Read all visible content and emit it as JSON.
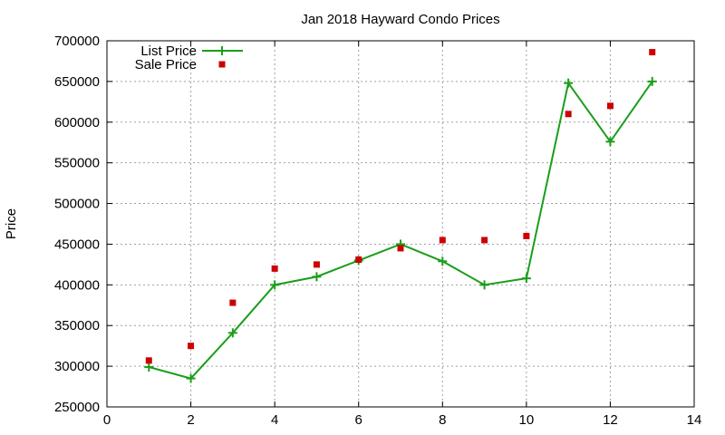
{
  "chart_data": {
    "type": "line",
    "title": "Jan 2018 Hayward Condo Prices",
    "xlabel": "",
    "ylabel": "Price",
    "xlim": [
      0,
      14
    ],
    "ylim": [
      250000,
      700000
    ],
    "x_ticks": [
      0,
      2,
      4,
      6,
      8,
      10,
      12,
      14
    ],
    "y_ticks": [
      250000,
      300000,
      350000,
      400000,
      450000,
      500000,
      550000,
      600000,
      650000,
      700000
    ],
    "grid": true,
    "legend_position": "top-left",
    "series": [
      {
        "name": "List Price",
        "style": "lines+crosses",
        "color": "#1a9e1a",
        "x": [
          1,
          2,
          3,
          4,
          5,
          6,
          7,
          8,
          9,
          10,
          11,
          12,
          13
        ],
        "y": [
          299000,
          285000,
          341000,
          400000,
          410000,
          430000,
          450000,
          429000,
          400000,
          408000,
          648000,
          576000,
          650000
        ]
      },
      {
        "name": "Sale Price",
        "style": "squares",
        "color": "#cc0000",
        "x": [
          1,
          2,
          3,
          4,
          5,
          6,
          7,
          8,
          9,
          10,
          11,
          12,
          13
        ],
        "y": [
          307000,
          325000,
          378000,
          420000,
          425000,
          431000,
          445000,
          455000,
          455000,
          460000,
          610000,
          620000,
          686000
        ]
      }
    ]
  }
}
